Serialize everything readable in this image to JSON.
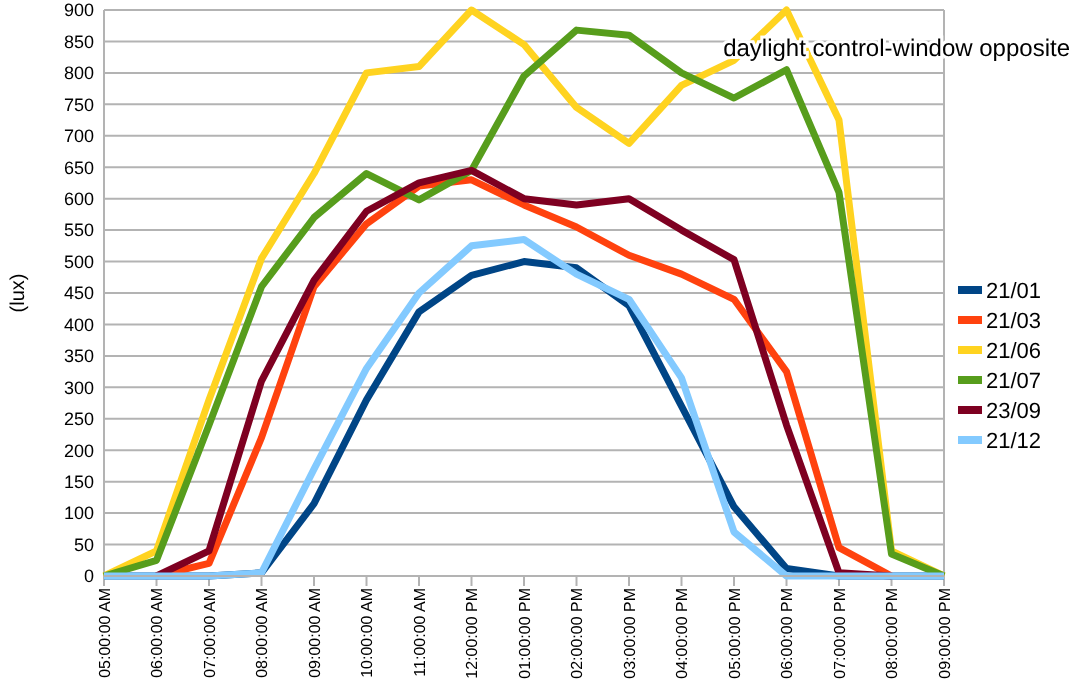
{
  "chart_data": {
    "type": "line",
    "title": "daylight control-window opposite",
    "ylabel": "(lux)",
    "categories": [
      "05:00:00 AM",
      "06:00:00 AM",
      "07:00:00 AM",
      "08:00:00 AM",
      "09:00:00 AM",
      "10:00:00 AM",
      "11:00:00 AM",
      "12:00:00 PM",
      "01:00:00 PM",
      "02:00:00 PM",
      "03:00:00 PM",
      "04:00:00 PM",
      "05:00:00 PM",
      "06:00:00 PM",
      "07:00:00 PM",
      "08:00:00 PM",
      "09:00:00 PM"
    ],
    "series": [
      {
        "name": "21/01",
        "color": "#004586",
        "values": [
          0,
          0,
          0,
          5,
          115,
          280,
          420,
          478,
          500,
          490,
          430,
          270,
          110,
          12,
          0,
          0,
          0
        ]
      },
      {
        "name": "21/03",
        "color": "#ff420e",
        "values": [
          null,
          0,
          20,
          220,
          460,
          560,
          620,
          630,
          590,
          555,
          510,
          480,
          440,
          325,
          45,
          0,
          null
        ]
      },
      {
        "name": "21/06",
        "color": "#ffd320",
        "values": [
          0,
          40,
          280,
          505,
          640,
          800,
          810,
          900,
          845,
          745,
          688,
          780,
          820,
          900,
          725,
          40,
          0
        ]
      },
      {
        "name": "21/07",
        "color": "#579d1c",
        "values": [
          0,
          25,
          240,
          460,
          570,
          640,
          598,
          645,
          795,
          868,
          860,
          800,
          760,
          805,
          610,
          35,
          0
        ]
      },
      {
        "name": "23/09",
        "color": "#7e0021",
        "values": [
          null,
          0,
          40,
          310,
          470,
          580,
          625,
          645,
          600,
          590,
          600,
          550,
          503,
          240,
          5,
          0,
          null
        ]
      },
      {
        "name": "21/12",
        "color": "#83caff",
        "values": [
          0,
          0,
          0,
          5,
          170,
          330,
          450,
          525,
          535,
          480,
          440,
          315,
          70,
          0,
          0,
          0,
          0
        ]
      }
    ],
    "ylim": [
      0,
      900
    ],
    "yticks": [
      0,
      50,
      100,
      150,
      200,
      250,
      300,
      350,
      400,
      450,
      500,
      550,
      600,
      650,
      700,
      750,
      800,
      850,
      900
    ],
    "grid": "y",
    "legend": "right",
    "marker": "none",
    "line_style": "solid"
  }
}
